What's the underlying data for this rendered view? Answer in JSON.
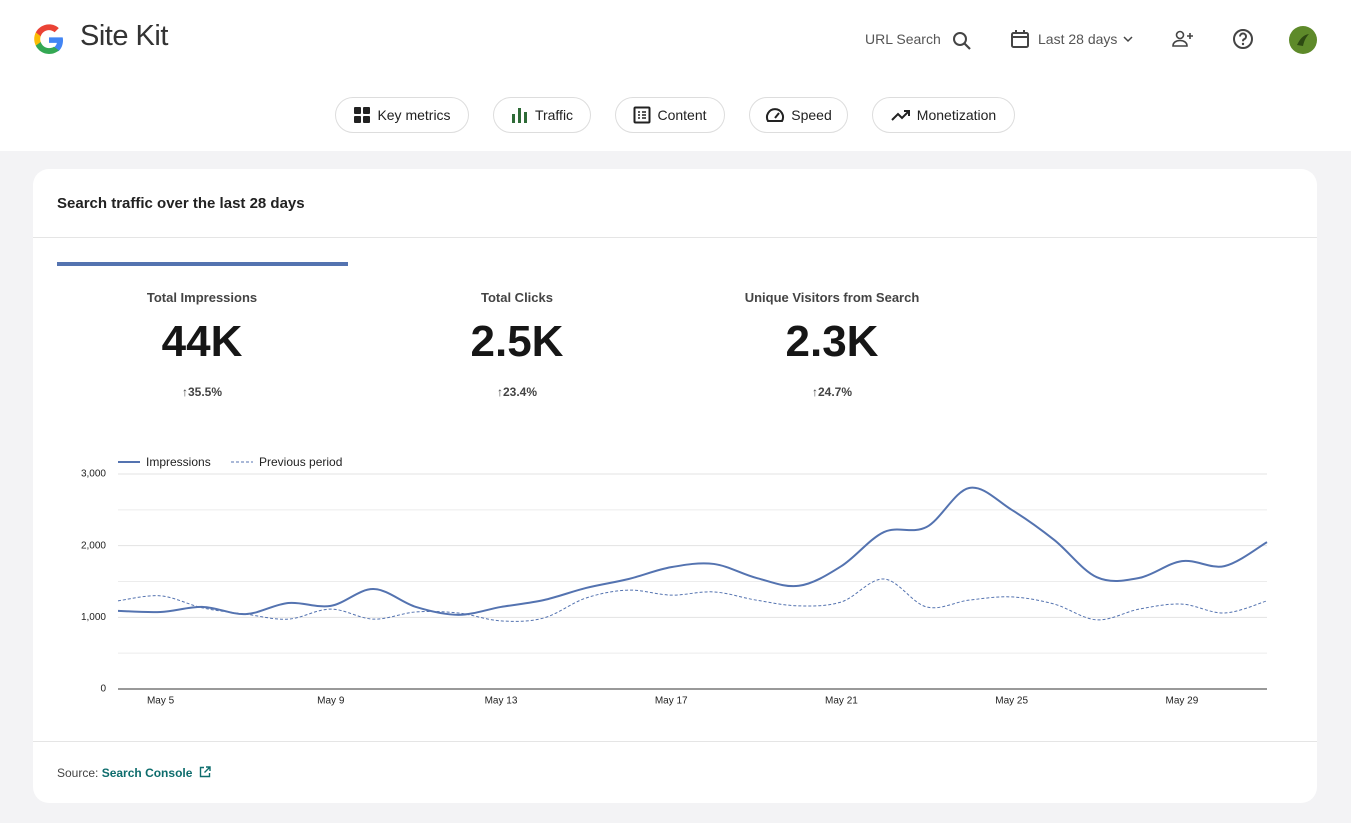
{
  "header": {
    "brand": "Site Kit",
    "url_search": "URL Search",
    "date_range": "Last 28 days"
  },
  "tabs": {
    "items": [
      "Key metrics",
      "Traffic",
      "Content",
      "Speed",
      "Monetization"
    ],
    "active": 1
  },
  "card": {
    "title": "Search traffic over the last 28 days",
    "metrics": [
      {
        "label": "Total Impressions",
        "value": "44K",
        "change": "35.5%"
      },
      {
        "label": "Total Clicks",
        "value": "2.5K",
        "change": "23.4%"
      },
      {
        "label": "Unique Visitors from Search",
        "value": "2.3K",
        "change": "24.7%"
      }
    ],
    "source_label": "Source:",
    "source_link": "Search Console"
  },
  "chart_data": {
    "type": "line",
    "categories": [
      null,
      "May 5",
      null,
      null,
      null,
      "May 9",
      null,
      null,
      null,
      "May 13",
      null,
      null,
      null,
      "May 17",
      null,
      null,
      null,
      "May 21",
      null,
      null,
      null,
      "May 25",
      null,
      null,
      null,
      "May 29",
      null,
      null
    ],
    "series": [
      {
        "name": "Impressions",
        "color": "#5473b0",
        "dashed": false,
        "values": [
          1090,
          1075,
          1145,
          1045,
          1200,
          1160,
          1395,
          1145,
          1035,
          1145,
          1240,
          1410,
          1535,
          1700,
          1745,
          1550,
          1440,
          1715,
          2190,
          2260,
          2805,
          2500,
          2080,
          1560,
          1550,
          1785,
          1715,
          2050
        ]
      },
      {
        "name": "Previous period",
        "color": "#5473b0",
        "dashed": true,
        "values": [
          1230,
          1300,
          1130,
          1045,
          975,
          1115,
          975,
          1075,
          1060,
          950,
          990,
          1270,
          1380,
          1310,
          1355,
          1240,
          1160,
          1215,
          1535,
          1145,
          1240,
          1285,
          1185,
          965,
          1115,
          1185,
          1060,
          1230
        ]
      }
    ],
    "ylim": [
      0,
      3000
    ],
    "yticks": [
      0,
      {
        "value": 1000,
        "label": "1,000"
      },
      {
        "value": 2000,
        "label": "2,000"
      },
      {
        "value": 3000,
        "label": "3,000"
      }
    ],
    "minor_gridlines": [
      500,
      1500,
      2500
    ],
    "grid": true
  }
}
